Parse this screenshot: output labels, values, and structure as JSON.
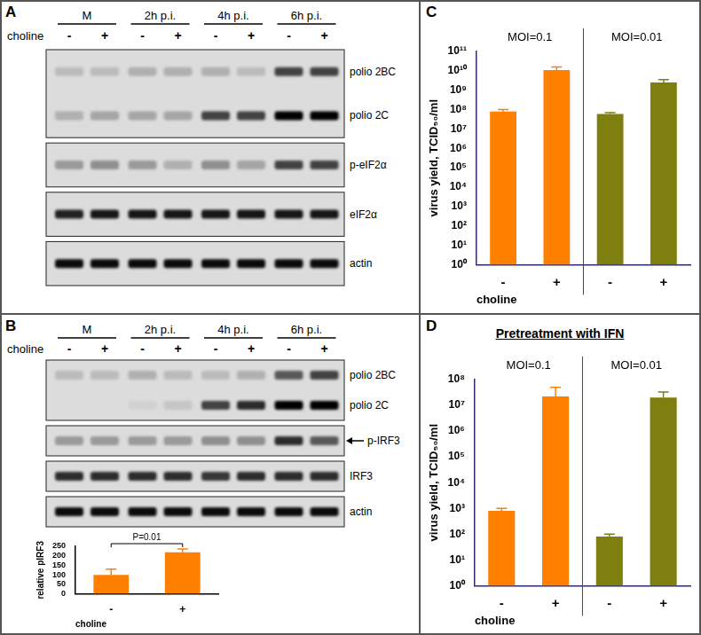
{
  "panels": [
    {
      "label": "A",
      "header": [
        "M",
        "2h p.i.",
        "4h p.i.",
        "6h p.i."
      ],
      "row_label": "choline",
      "treatment": [
        "-",
        "+",
        "-",
        "+",
        "-",
        "+",
        "-",
        "+"
      ],
      "blots": [
        {
          "rows": [
            {
              "label": "polio 2BC",
              "intensity": [
                0.15,
                0.15,
                0.2,
                0.2,
                0.2,
                0.15,
                0.7,
                0.7
              ]
            },
            {
              "label": "polio 2C",
              "intensity": [
                0.2,
                0.25,
                0.25,
                0.25,
                0.7,
                0.7,
                1,
                1
              ]
            }
          ]
        },
        {
          "rows": [
            {
              "label": "p-eIF2α",
              "intensity": [
                0.3,
                0.35,
                0.3,
                0.2,
                0.35,
                0.25,
                0.7,
                0.7
              ]
            }
          ]
        },
        {
          "rows": [
            {
              "label": "eIF2α",
              "intensity": [
                0.85,
                0.9,
                0.9,
                0.9,
                0.9,
                0.9,
                0.9,
                0.9
              ]
            }
          ]
        },
        {
          "rows": [
            {
              "label": "actin",
              "intensity": [
                0.95,
                0.95,
                0.95,
                0.95,
                0.95,
                0.95,
                0.95,
                0.95
              ]
            }
          ]
        }
      ]
    },
    {
      "label": "B",
      "header": [
        "M",
        "2h p.i.",
        "4h p.i.",
        "6h p.i."
      ],
      "row_label": "choline",
      "treatment": [
        "-",
        "+",
        "-",
        "+",
        "-",
        "+",
        "-",
        "+"
      ],
      "blots": [
        {
          "rows": [
            {
              "label": "polio 2BC",
              "intensity": [
                0.15,
                0.15,
                0.2,
                0.15,
                0.15,
                0.2,
                0.6,
                0.7
              ]
            },
            {
              "label": "polio 2C",
              "intensity": [
                0,
                0,
                0.05,
                0.1,
                0.7,
                0.8,
                1,
                1
              ]
            }
          ]
        },
        {
          "rows": [
            {
              "label": "p-IRF3",
              "marker": "arrow",
              "intensity": [
                0.3,
                0.3,
                0.3,
                0.3,
                0.35,
                0.35,
                0.8,
                0.6
              ]
            }
          ]
        },
        {
          "rows": [
            {
              "label": "IRF3",
              "intensity": [
                0.8,
                0.8,
                0.8,
                0.8,
                0.75,
                0.8,
                0.8,
                0.8
              ]
            }
          ]
        },
        {
          "rows": [
            {
              "label": "actin",
              "intensity": [
                0.95,
                0.95,
                0.95,
                0.95,
                0.95,
                0.95,
                0.95,
                0.95
              ]
            }
          ]
        }
      ]
    }
  ],
  "chart_data": [
    {
      "type": "bar",
      "categories": [
        "-",
        "+"
      ],
      "values": [
        100,
        218
      ],
      "errors": [
        30,
        18
      ],
      "color": "#ff8000",
      "x_label": "choline",
      "y_label": "relative pIRF3",
      "annotations": [
        "P=0.01"
      ],
      "ylim": [
        0,
        250
      ],
      "yticks": [
        0,
        50,
        100,
        150,
        200,
        250
      ],
      "grid": false
    },
    {
      "panel": "C",
      "type": "bar",
      "categories": [
        "-",
        "+",
        "-",
        "+"
      ],
      "groups": [
        "MOI=0.1",
        "MOI=0.01"
      ],
      "values": [
        80000000,
        11000000000,
        60000000,
        2500000000
      ],
      "errors": [
        20000000,
        5000000000,
        10000000,
        1000000000
      ],
      "colors": [
        "#ff8000",
        "#ff8000",
        "#7f7f0f",
        "#7f7f0f"
      ],
      "x_label": "choline",
      "y_label": "virus yield, TCID₅₀/ml",
      "log": "y",
      "grid": false,
      "ylim": [
        1,
        100000000000
      ],
      "yticks": [
        {
          "value": 1,
          "label": "10⁰"
        },
        {
          "value": 10,
          "label": "10¹"
        },
        {
          "value": 100,
          "label": "10²"
        },
        {
          "value": 1000,
          "label": "10³"
        },
        {
          "value": 10000,
          "label": "10⁴"
        },
        {
          "value": 100000,
          "label": "10⁵"
        },
        {
          "value": 1000000,
          "label": "10⁶"
        },
        {
          "value": 10000000,
          "label": "10⁷"
        },
        {
          "value": 100000000,
          "label": "10⁸"
        },
        {
          "value": 1000000000,
          "label": "10⁹"
        },
        {
          "value": 10000000000,
          "label": "10¹⁰"
        },
        {
          "value": 100000000000,
          "label": "10¹¹"
        }
      ]
    },
    {
      "panel": "D",
      "title": "Pretreatment with IFN",
      "type": "bar",
      "categories": [
        "-",
        "+",
        "-",
        "+"
      ],
      "groups": [
        "MOI=0.1",
        "MOI=0.01"
      ],
      "values": [
        800,
        22000000,
        80,
        20000000
      ],
      "errors": [
        200,
        28000000,
        20,
        13000000
      ],
      "colors": [
        "#ff8000",
        "#ff8000",
        "#7f7f0f",
        "#7f7f0f"
      ],
      "x_label": "choline",
      "y_label": "virus yield, TCID₅₀/ml",
      "log": "y",
      "grid": false,
      "ylim": [
        1,
        100000000
      ],
      "yticks": [
        {
          "value": 1,
          "label": "10⁰"
        },
        {
          "value": 10,
          "label": "10¹"
        },
        {
          "value": 100,
          "label": "10²"
        },
        {
          "value": 1000,
          "label": "10³"
        },
        {
          "value": 10000,
          "label": "10⁴"
        },
        {
          "value": 100000,
          "label": "10⁵"
        },
        {
          "value": 1000000,
          "label": "10⁶"
        },
        {
          "value": 10000000,
          "label": "10⁷"
        },
        {
          "value": 100000000,
          "label": "10⁸"
        }
      ]
    }
  ]
}
